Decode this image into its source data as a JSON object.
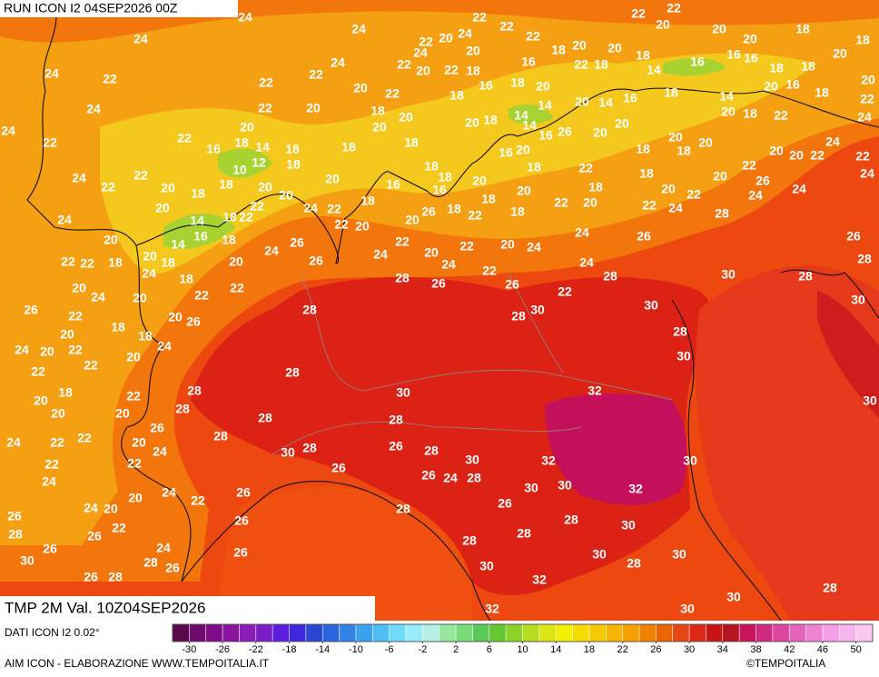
{
  "header": {
    "title": "RUN ICON I2 04SEP2026 00Z"
  },
  "legend": {
    "title": "TMP 2M Val. 10Z04SEP2026",
    "source": "DATI ICON I2 0.02°",
    "credit": "AIM ICON - ELABORAZIONE WWW.TEMPOITALIA.IT",
    "brand": "©TEMPOITALIA"
  },
  "scale": {
    "min": -32,
    "max": 52,
    "ticks": [
      -30,
      -26,
      -22,
      -18,
      -14,
      -10,
      -6,
      -2,
      2,
      6,
      10,
      14,
      18,
      22,
      26,
      30,
      34,
      38,
      42,
      46,
      50
    ],
    "colors": [
      "#5a0a4a",
      "#6e0a6e",
      "#800a8a",
      "#8a14a0",
      "#8c1ab4",
      "#7a1ec8",
      "#5a1edc",
      "#3c28dc",
      "#2846d2",
      "#2864dc",
      "#3282e6",
      "#3ca0f0",
      "#50bef5",
      "#6edcf8",
      "#96ecf8",
      "#b4f0e6",
      "#96e6a0",
      "#78dc78",
      "#5ac85a",
      "#64c832",
      "#8cd228",
      "#b4dc1e",
      "#dce614",
      "#f0f000",
      "#f5dc00",
      "#f5c800",
      "#f5b400",
      "#f5a000",
      "#f08200",
      "#eb6400",
      "#e64614",
      "#dc2814",
      "#c81414",
      "#b4141e",
      "#c8145a",
      "#d22882",
      "#dc46a0",
      "#e664be",
      "#f082d2",
      "#f5a0e6",
      "#f8b4ec",
      "#fac8f0"
    ]
  },
  "map": {
    "temperature_labels": [
      24,
      24,
      24,
      22,
      22,
      22,
      22,
      22,
      20,
      20,
      20,
      18,
      18,
      24,
      22,
      24,
      24,
      22,
      22,
      22,
      24,
      22,
      20,
      24,
      24,
      22,
      20,
      20,
      18,
      16,
      18,
      20,
      22,
      18,
      20,
      18,
      14,
      16,
      16,
      16,
      18,
      18,
      20,
      20,
      18,
      16,
      20,
      14,
      18,
      20,
      22,
      22,
      24,
      20,
      22,
      18,
      20,
      22,
      18,
      16,
      18,
      20,
      20,
      18,
      14,
      14,
      20,
      14,
      16,
      18,
      20,
      20,
      26,
      16,
      14,
      16,
      20,
      18,
      22,
      18,
      20,
      20,
      18,
      20,
      22,
      20,
      20,
      22,
      24,
      22,
      24,
      24,
      26,
      24,
      22,
      20,
      18,
      22,
      24,
      28,
      26,
      28,
      30,
      28,
      30,
      30,
      28,
      24,
      26,
      24,
      22,
      30,
      28,
      26,
      22,
      24,
      20,
      18,
      20,
      18,
      20,
      22,
      20,
      22,
      18,
      18,
      16,
      18,
      18,
      26,
      20,
      22,
      20,
      24,
      22,
      24,
      28,
      26,
      20,
      22,
      22,
      24,
      20,
      22,
      20,
      18,
      18,
      20,
      20,
      22,
      22,
      24,
      24,
      20,
      16,
      10,
      12,
      14,
      18,
      20,
      18,
      18,
      20,
      18,
      18,
      16,
      18,
      20,
      20,
      22,
      22,
      14,
      14,
      16,
      18,
      22,
      18,
      20,
      18,
      24,
      18,
      22,
      22,
      20,
      24,
      26,
      26,
      22,
      22,
      18,
      20,
      24,
      26,
      22,
      18,
      20,
      20,
      26,
      18,
      24,
      24,
      20,
      22,
      22,
      20,
      22,
      20,
      18,
      20,
      20,
      22,
      20,
      26,
      20,
      24,
      22,
      28,
      28,
      24,
      22,
      22,
      22,
      24,
      20,
      24,
      22,
      24,
      20,
      22,
      26,
      28,
      26,
      30,
      26,
      24,
      28,
      26,
      26,
      28,
      26,
      26,
      26,
      28,
      30,
      28,
      28,
      26,
      28,
      26,
      30,
      28,
      26,
      24,
      28,
      30,
      28,
      26,
      28,
      30,
      32,
      30,
      28,
      32,
      32,
      30,
      30,
      30,
      30,
      28,
      30,
      28,
      32,
      32,
      30,
      30,
      28,
      30,
      30,
      28,
      28,
      28
    ]
  }
}
